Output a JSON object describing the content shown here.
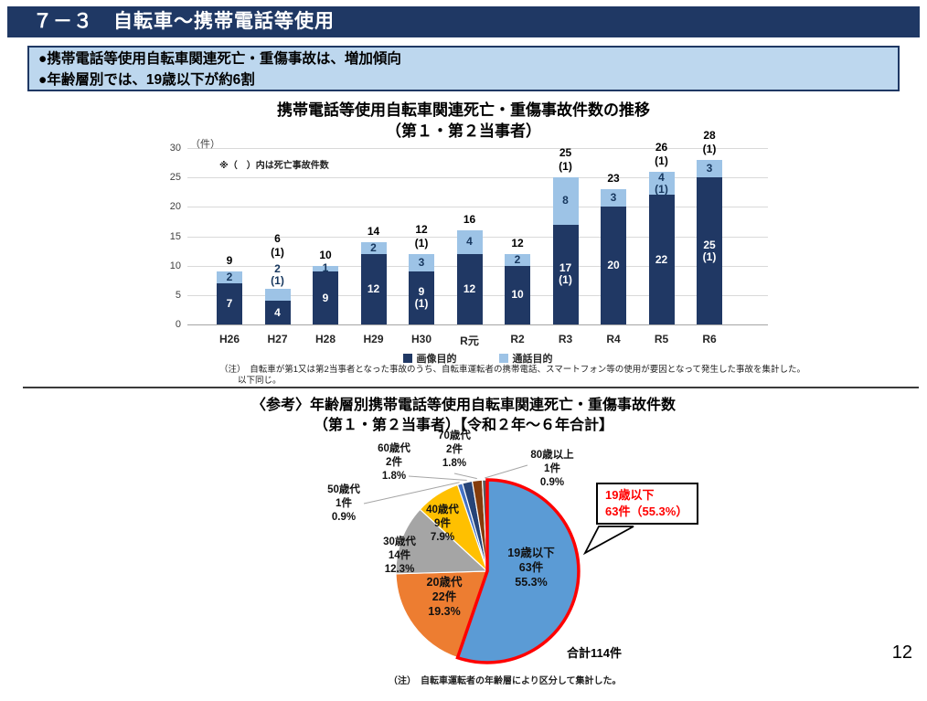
{
  "header": {
    "title": "７－３　自転車～携帯電話等使用"
  },
  "summary_box": {
    "bullets": [
      "●携帯電話等使用自転車関連死亡・重傷事故は、増加傾向",
      "●年齢層別では、19歳以下が約6割"
    ]
  },
  "bar_section": {
    "title_line1": "携帯電話等使用自転車関連死亡・重傷事故件数の推移",
    "title_line2": "（第１・第２当事者）",
    "unit_label": "（件）",
    "fatal_note": "※（　）内は死亡事故件数",
    "note_line1": "（注）　自転車が第1又は第2当事者となった事故のうち、自転車運転者の携帯電話、スマートフォン等の使用が要因となって発生した事故を集計した。",
    "note_line2": "以下同じ。"
  },
  "pie_section": {
    "title_line1": "〈参考〉年齢層別携帯電話等使用自転車関連死亡・重傷事故件数",
    "title_line2": "（第１・第２当事者）【令和２年～６年合計】",
    "callout": {
      "line1": "19歳以下",
      "line2": "63件（55.3%）"
    },
    "callout_color": "#FF0000",
    "total_label": "合計114件",
    "note": "（注）　自転車運転者の年齢層により区分して集計した。"
  },
  "page": {
    "number": "12"
  },
  "chart_data": [
    {
      "type": "bar",
      "stacked": true,
      "title": "携帯電話等使用自転車関連死亡・重傷事故件数の推移（第１・第２当事者）",
      "ylabel": "件",
      "ylim": [
        0,
        30
      ],
      "ytick_step": 5,
      "grid": true,
      "legend_position": "bottom",
      "categories": [
        "H26",
        "H27",
        "H28",
        "H29",
        "H30",
        "R元",
        "R2",
        "R3",
        "R4",
        "R5",
        "R6"
      ],
      "series": [
        {
          "name": "画像目的",
          "color": "#203864",
          "values": [
            7,
            4,
            9,
            12,
            9,
            12,
            10,
            17,
            20,
            22,
            25
          ],
          "fatal": [
            0,
            0,
            0,
            0,
            1,
            0,
            0,
            1,
            0,
            0,
            1
          ]
        },
        {
          "name": "通話目的",
          "color": "#9DC3E6",
          "values": [
            2,
            2,
            1,
            2,
            3,
            4,
            2,
            8,
            3,
            4,
            3
          ],
          "fatal": [
            0,
            1,
            0,
            0,
            0,
            0,
            0,
            0,
            0,
            1,
            0
          ]
        }
      ],
      "totals": [
        9,
        6,
        10,
        14,
        12,
        16,
        12,
        25,
        23,
        26,
        28
      ],
      "total_fatal": [
        0,
        1,
        0,
        0,
        1,
        0,
        0,
        1,
        0,
        1,
        1
      ]
    },
    {
      "type": "pie",
      "title": "年齢層別携帯電話等使用自転車関連死亡・重傷事故件数（令和２年～６年合計）",
      "total": 114,
      "start_angle_deg": 0,
      "direction": "clockwise",
      "highlight_color": "#FF0000",
      "slices": [
        {
          "label": "19歳以下",
          "count": "63件",
          "pct": "55.3%",
          "value": 63,
          "color": "#5B9BD5",
          "highlight": true,
          "label_inside": true
        },
        {
          "label": "20歳代",
          "count": "22件",
          "pct": "19.3%",
          "value": 22,
          "color": "#ED7D31",
          "label_inside": true
        },
        {
          "label": "30歳代",
          "count": "14件",
          "pct": "12.3%",
          "value": 14,
          "color": "#A5A5A5"
        },
        {
          "label": "40歳代",
          "count": "9件",
          "pct": "7.9%",
          "value": 9,
          "color": "#FFC000",
          "label_inside": true
        },
        {
          "label": "50歳代",
          "count": "1件",
          "pct": "0.9%",
          "value": 1,
          "color": "#4472C4"
        },
        {
          "label": "60歳代",
          "count": "2件",
          "pct": "1.8%",
          "value": 2,
          "color": "#264478"
        },
        {
          "label": "70歳代",
          "count": "2件",
          "pct": "1.8%",
          "value": 2,
          "color": "#843C0C"
        },
        {
          "label": "80歳以上",
          "count": "1件",
          "pct": "0.9%",
          "value": 1,
          "color": "#595959"
        }
      ]
    }
  ]
}
